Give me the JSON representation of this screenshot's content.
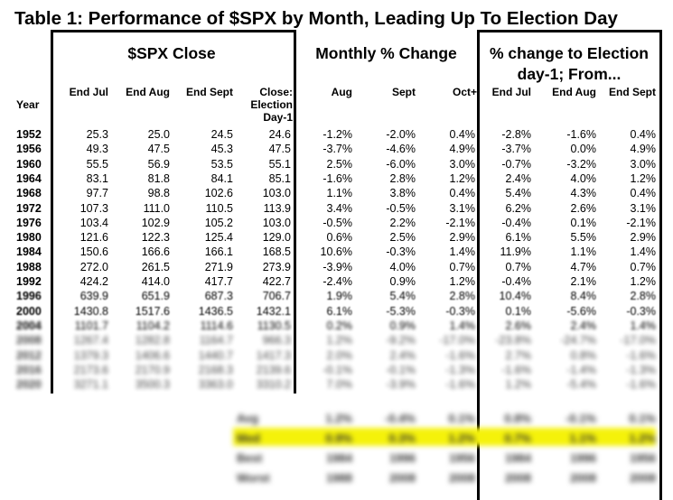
{
  "title": "Table 1: Performance of $SPX by Month, Leading Up To Election Day",
  "group_headers": {
    "close": "$SPX Close",
    "monthly": "Monthly % Change",
    "to_election": "% change to Election day-1;  From..."
  },
  "column_headers": {
    "year": "Year",
    "end_jul": "End Jul",
    "end_aug": "End Aug",
    "end_sept": "End Sept",
    "close_election": "Close: Election Day-1",
    "aug": "Aug",
    "sept": "Sept",
    "oct": "Oct+",
    "from_end_jul": "End Jul",
    "from_end_aug": "End Aug",
    "from_end_sept": "End Sept"
  },
  "rows": [
    {
      "year": "1952",
      "end_jul": "25.3",
      "end_aug": "25.0",
      "end_sept": "24.5",
      "close": "24.6",
      "aug": "-1.2%",
      "sept": "-2.0%",
      "oct": "0.4%",
      "f_jul": "-2.8%",
      "f_aug": "-1.6%",
      "f_sept": "0.4%"
    },
    {
      "year": "1956",
      "end_jul": "49.3",
      "end_aug": "47.5",
      "end_sept": "45.3",
      "close": "47.5",
      "aug": "-3.7%",
      "sept": "-4.6%",
      "oct": "4.9%",
      "f_jul": "-3.7%",
      "f_aug": "0.0%",
      "f_sept": "4.9%"
    },
    {
      "year": "1960",
      "end_jul": "55.5",
      "end_aug": "56.9",
      "end_sept": "53.5",
      "close": "55.1",
      "aug": "2.5%",
      "sept": "-6.0%",
      "oct": "3.0%",
      "f_jul": "-0.7%",
      "f_aug": "-3.2%",
      "f_sept": "3.0%"
    },
    {
      "year": "1964",
      "end_jul": "83.1",
      "end_aug": "81.8",
      "end_sept": "84.1",
      "close": "85.1",
      "aug": "-1.6%",
      "sept": "2.8%",
      "oct": "1.2%",
      "f_jul": "2.4%",
      "f_aug": "4.0%",
      "f_sept": "1.2%"
    },
    {
      "year": "1968",
      "end_jul": "97.7",
      "end_aug": "98.8",
      "end_sept": "102.6",
      "close": "103.0",
      "aug": "1.1%",
      "sept": "3.8%",
      "oct": "0.4%",
      "f_jul": "5.4%",
      "f_aug": "4.3%",
      "f_sept": "0.4%"
    },
    {
      "year": "1972",
      "end_jul": "107.3",
      "end_aug": "111.0",
      "end_sept": "110.5",
      "close": "113.9",
      "aug": "3.4%",
      "sept": "-0.5%",
      "oct": "3.1%",
      "f_jul": "6.2%",
      "f_aug": "2.6%",
      "f_sept": "3.1%"
    },
    {
      "year": "1976",
      "end_jul": "103.4",
      "end_aug": "102.9",
      "end_sept": "105.2",
      "close": "103.0",
      "aug": "-0.5%",
      "sept": "2.2%",
      "oct": "-2.1%",
      "f_jul": "-0.4%",
      "f_aug": "0.1%",
      "f_sept": "-2.1%"
    },
    {
      "year": "1980",
      "end_jul": "121.6",
      "end_aug": "122.3",
      "end_sept": "125.4",
      "close": "129.0",
      "aug": "0.6%",
      "sept": "2.5%",
      "oct": "2.9%",
      "f_jul": "6.1%",
      "f_aug": "5.5%",
      "f_sept": "2.9%"
    },
    {
      "year": "1984",
      "end_jul": "150.6",
      "end_aug": "166.6",
      "end_sept": "166.1",
      "close": "168.5",
      "aug": "10.6%",
      "sept": "-0.3%",
      "oct": "1.4%",
      "f_jul": "11.9%",
      "f_aug": "1.1%",
      "f_sept": "1.4%"
    },
    {
      "year": "1988",
      "end_jul": "272.0",
      "end_aug": "261.5",
      "end_sept": "271.9",
      "close": "273.9",
      "aug": "-3.9%",
      "sept": "4.0%",
      "oct": "0.7%",
      "f_jul": "0.7%",
      "f_aug": "4.7%",
      "f_sept": "0.7%"
    },
    {
      "year": "1992",
      "end_jul": "424.2",
      "end_aug": "414.0",
      "end_sept": "417.7",
      "close": "422.7",
      "aug": "-2.4%",
      "sept": "0.9%",
      "oct": "1.2%",
      "f_jul": "-0.4%",
      "f_aug": "2.1%",
      "f_sept": "1.2%"
    },
    {
      "year": "1996",
      "end_jul": "639.9",
      "end_aug": "651.9",
      "end_sept": "687.3",
      "close": "706.7",
      "aug": "1.9%",
      "sept": "5.4%",
      "oct": "2.8%",
      "f_jul": "10.4%",
      "f_aug": "8.4%",
      "f_sept": "2.8%"
    },
    {
      "year": "2000",
      "end_jul": "1430.8",
      "end_aug": "1517.6",
      "end_sept": "1436.5",
      "close": "1432.1",
      "aug": "6.1%",
      "sept": "-5.3%",
      "oct": "-0.3%",
      "f_jul": "0.1%",
      "f_aug": "-5.6%",
      "f_sept": "-0.3%"
    },
    {
      "year": "2004",
      "end_jul": "1101.7",
      "end_aug": "1104.2",
      "end_sept": "1114.6",
      "close": "1130.5",
      "aug": "0.2%",
      "sept": "0.9%",
      "oct": "1.4%",
      "f_jul": "2.6%",
      "f_aug": "2.4%",
      "f_sept": "1.4%"
    },
    {
      "year": "2008",
      "end_jul": "1267.4",
      "end_aug": "1282.8",
      "end_sept": "1164.7",
      "close": "966.3",
      "aug": "1.2%",
      "sept": "-9.2%",
      "oct": "-17.0%",
      "f_jul": "-23.8%",
      "f_aug": "-24.7%",
      "f_sept": "-17.0%"
    },
    {
      "year": "2012",
      "end_jul": "1379.3",
      "end_aug": "1406.6",
      "end_sept": "1440.7",
      "close": "1417.3",
      "aug": "2.0%",
      "sept": "2.4%",
      "oct": "-1.6%",
      "f_jul": "2.7%",
      "f_aug": "0.8%",
      "f_sept": "-1.6%"
    },
    {
      "year": "2016",
      "end_jul": "2173.6",
      "end_aug": "2170.9",
      "end_sept": "2168.3",
      "close": "2139.6",
      "aug": "-0.1%",
      "sept": "-0.1%",
      "oct": "-1.3%",
      "f_jul": "-1.6%",
      "f_aug": "-1.4%",
      "f_sept": "-1.3%"
    },
    {
      "year": "2020",
      "end_jul": "3271.1",
      "end_aug": "3500.3",
      "end_sept": "3363.0",
      "close": "3310.2",
      "aug": "7.0%",
      "sept": "-3.9%",
      "oct": "-1.6%",
      "f_jul": "1.2%",
      "f_aug": "-5.4%",
      "f_sept": "-1.6%"
    }
  ],
  "summary": [
    {
      "label": "Avg",
      "aug": "1.2%",
      "sept": "-0.4%",
      "oct": "0.1%",
      "f_jul": "0.8%",
      "f_aug": "-0.1%",
      "f_sept": "0.1%"
    },
    {
      "label": "Med",
      "aug": "0.9%",
      "sept": "0.3%",
      "oct": "1.2%",
      "f_jul": "0.7%",
      "f_aug": "1.1%",
      "f_sept": "1.2%"
    },
    {
      "label": "Best",
      "aug": "1984",
      "sept": "1996",
      "oct": "1956",
      "f_jul": "1984",
      "f_aug": "1996",
      "f_sept": "1956"
    },
    {
      "label": "Worst",
      "aug": "1988",
      "sept": "2008",
      "oct": "2008",
      "f_jul": "2008",
      "f_aug": "2008",
      "f_sept": "2008"
    }
  ],
  "colors": {
    "highlight": "#f5f20a",
    "text": "#000000",
    "border": "#000000"
  }
}
